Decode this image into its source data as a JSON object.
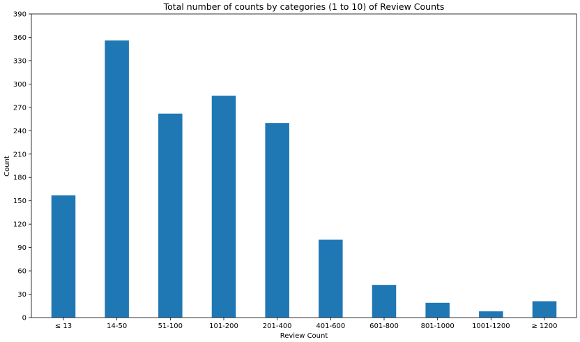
{
  "chart_data": {
    "type": "bar",
    "title": "Total number of counts by categories (1 to 10) of Review Counts",
    "xlabel": "Review Count",
    "ylabel": "Count",
    "categories": [
      "≤ 13",
      "14-50",
      "51-100",
      "101-200",
      "201-400",
      "401-600",
      "601-800",
      "801-1000",
      "1001-1200",
      "≥ 1200"
    ],
    "values": [
      157,
      356,
      262,
      285,
      250,
      100,
      42,
      19,
      8,
      21
    ],
    "ylim": [
      0,
      390
    ],
    "yticks": [
      0,
      30,
      60,
      90,
      120,
      150,
      180,
      210,
      240,
      270,
      300,
      330,
      360,
      390
    ],
    "grid": false,
    "colors": {
      "bar": "#1f77b4",
      "axis": "#000000"
    }
  }
}
